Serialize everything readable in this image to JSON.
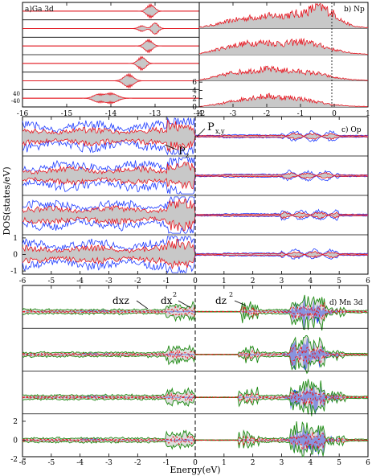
{
  "colors": {
    "red": "#e8141e",
    "blue": "#1f3cff",
    "green": "#1f8c14",
    "fill_gray": "#c8c8c8",
    "blue_fill": "#2845ff",
    "axis": "#000000"
  },
  "chart_data": [
    {
      "id": "ga3d",
      "type": "area",
      "panel_label": "a)Ga 3d",
      "xlim": [
        -16,
        -12
      ],
      "x_ticks": [
        -16,
        -15,
        -14,
        -13,
        -12
      ],
      "y_tick_labels": [
        "40",
        "-40"
      ],
      "rows": 6,
      "series": [
        {
          "row": 0,
          "peaks": [
            {
              "center": -13.1,
              "width": 0.12,
              "height": 0.9
            }
          ]
        },
        {
          "row": 1,
          "peaks": [
            {
              "center": -13.0,
              "width": 0.1,
              "height": 0.8
            },
            {
              "center": -13.3,
              "width": 0.1,
              "height": 0.4
            }
          ]
        },
        {
          "row": 2,
          "peaks": [
            {
              "center": -13.15,
              "width": 0.12,
              "height": 0.85
            }
          ]
        },
        {
          "row": 3,
          "peaks": [
            {
              "center": -13.3,
              "width": 0.12,
              "height": 0.9
            }
          ]
        },
        {
          "row": 4,
          "peaks": [
            {
              "center": -13.6,
              "width": 0.15,
              "height": 0.9
            }
          ]
        },
        {
          "row": 5,
          "peaks": [
            {
              "center": -14.0,
              "width": 0.2,
              "height": 0.7
            },
            {
              "center": -14.3,
              "width": 0.15,
              "height": 0.5
            }
          ]
        }
      ]
    },
    {
      "id": "np",
      "type": "area",
      "panel_label": "b) Np",
      "xlim": [
        -4,
        1
      ],
      "x_ticks": [
        -4,
        -3,
        -2,
        -1,
        0,
        1
      ],
      "y_tick_labels": [
        "6",
        "4",
        "2",
        "0"
      ],
      "ylim": [
        0,
        6
      ],
      "rows": 4,
      "series": [
        {
          "row": 0,
          "x": [
            -4,
            -3.5,
            -3,
            -2.5,
            -2,
            -1.5,
            -1,
            -0.7,
            -0.5,
            -0.3,
            0,
            0.3,
            0.6,
            1
          ],
          "y": [
            0.3,
            1.0,
            2.0,
            2.6,
            3.0,
            3.2,
            3.6,
            4.5,
            5.5,
            4.8,
            3.5,
            1.5,
            0.5,
            0.2
          ]
        },
        {
          "row": 1,
          "x": [
            -4,
            -3.5,
            -3,
            -2.5,
            -2,
            -1.5,
            -1,
            -0.5,
            0,
            0.5,
            1
          ],
          "y": [
            0.2,
            1.2,
            2.2,
            2.8,
            3.0,
            2.6,
            3.2,
            2.4,
            1.2,
            0.4,
            0.1
          ]
        },
        {
          "row": 2,
          "x": [
            -4,
            -3.5,
            -3,
            -2.5,
            -2,
            -1.5,
            -1,
            -0.5,
            0,
            0.5,
            1
          ],
          "y": [
            0.2,
            1.0,
            2.0,
            2.4,
            2.8,
            2.5,
            2.2,
            1.8,
            0.8,
            0.3,
            0.1
          ]
        },
        {
          "row": 3,
          "x": [
            -4,
            -3.5,
            -3,
            -2.5,
            -2,
            -1.5,
            -1,
            -0.5,
            0,
            0.5,
            1
          ],
          "y": [
            0.1,
            0.6,
            1.4,
            2.2,
            2.6,
            2.3,
            2.0,
            1.2,
            0.5,
            0.2,
            0.1
          ]
        }
      ]
    },
    {
      "id": "op",
      "type": "area",
      "panel_label": "c) Op",
      "ylabel": "DOS(states/eV)",
      "xlim": [
        -6,
        6
      ],
      "x_ticks": [
        -6,
        -5,
        -4,
        -3,
        -2,
        -1,
        0,
        1,
        2,
        3,
        4,
        5,
        6
      ],
      "y_tick_labels": [
        "1",
        "0",
        "-1"
      ],
      "ylim": [
        -1.2,
        1.2
      ],
      "rows": 4,
      "annotations": [
        {
          "text": "P",
          "sub": "x,y"
        },
        {
          "text": "P",
          "sub": "z"
        }
      ],
      "series": [
        {
          "name": "p_xy",
          "color": "blue"
        },
        {
          "name": "p_z",
          "color": "red"
        }
      ]
    },
    {
      "id": "mn3d",
      "type": "area",
      "panel_label": "d) Mn 3d",
      "xlabel": "Energy(eV)",
      "xlim": [
        -6,
        6
      ],
      "x_ticks": [
        -6,
        -5,
        -4,
        -3,
        -2,
        -1,
        0,
        1,
        2,
        3,
        4,
        5,
        6
      ],
      "y_tick_labels": [
        "2",
        "0",
        "-2"
      ],
      "ylim": [
        -2,
        2
      ],
      "rows": 4,
      "annotations": [
        {
          "text": "dxz"
        },
        {
          "text": "dx",
          "sup": "2"
        },
        {
          "text": "dz",
          "sup": "2"
        }
      ],
      "series": [
        {
          "name": "dxz",
          "color": "green"
        },
        {
          "name": "dx2",
          "color": "red"
        },
        {
          "name": "dz2",
          "color": "blue"
        }
      ]
    }
  ]
}
